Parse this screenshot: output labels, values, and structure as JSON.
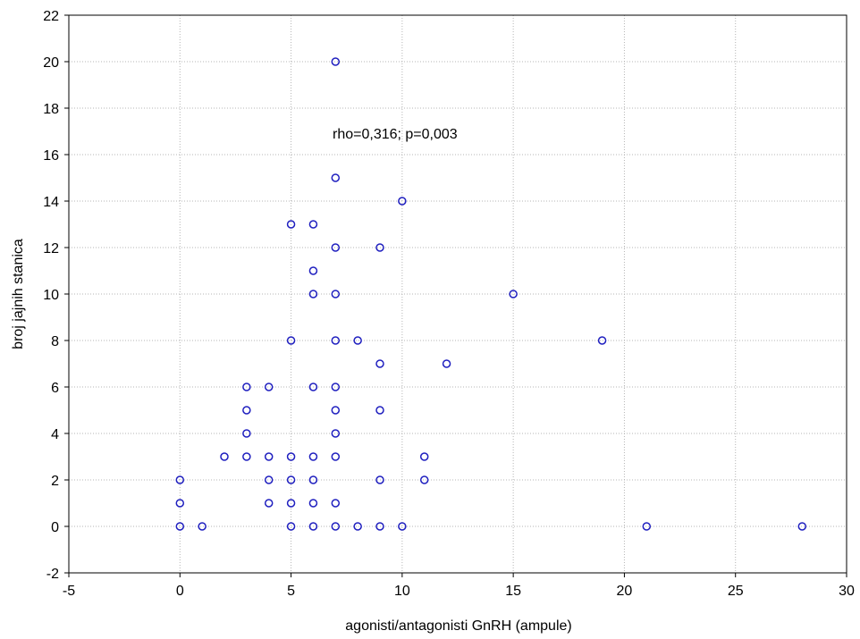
{
  "chart_data": {
    "type": "scatter",
    "xlabel": "agonisti/antagonisti GnRH (ampule)",
    "ylabel": "broj jajnih stanica",
    "xlim": [
      -5,
      30
    ],
    "ylim": [
      -2,
      22
    ],
    "x_ticks": [
      -5,
      0,
      5,
      10,
      15,
      20,
      25,
      30
    ],
    "y_ticks": [
      -2,
      0,
      2,
      4,
      6,
      8,
      10,
      12,
      14,
      16,
      18,
      20,
      22
    ],
    "grid": true,
    "annotation": "rho=0,316; p=0,003",
    "colors": {
      "marker": "#1f1fbf",
      "grid": "#b5b5b5",
      "axis": "#000000"
    },
    "points": [
      [
        0,
        0
      ],
      [
        0,
        1
      ],
      [
        0,
        2
      ],
      [
        1,
        0
      ],
      [
        2,
        3
      ],
      [
        3,
        3
      ],
      [
        3,
        4
      ],
      [
        3,
        5
      ],
      [
        3,
        6
      ],
      [
        4,
        1
      ],
      [
        4,
        2
      ],
      [
        4,
        3
      ],
      [
        4,
        6
      ],
      [
        5,
        0
      ],
      [
        5,
        1
      ],
      [
        5,
        2
      ],
      [
        5,
        3
      ],
      [
        5,
        8
      ],
      [
        5,
        13
      ],
      [
        6,
        0
      ],
      [
        6,
        1
      ],
      [
        6,
        2
      ],
      [
        6,
        3
      ],
      [
        6,
        6
      ],
      [
        6,
        10
      ],
      [
        6,
        11
      ],
      [
        6,
        13
      ],
      [
        7,
        0
      ],
      [
        7,
        1
      ],
      [
        7,
        3
      ],
      [
        7,
        4
      ],
      [
        7,
        5
      ],
      [
        7,
        6
      ],
      [
        7,
        8
      ],
      [
        7,
        10
      ],
      [
        7,
        12
      ],
      [
        7,
        15
      ],
      [
        7,
        20
      ],
      [
        8,
        0
      ],
      [
        8,
        8
      ],
      [
        9,
        0
      ],
      [
        9,
        2
      ],
      [
        9,
        5
      ],
      [
        9,
        7
      ],
      [
        9,
        12
      ],
      [
        10,
        0
      ],
      [
        10,
        14
      ],
      [
        11,
        2
      ],
      [
        11,
        3
      ],
      [
        12,
        7
      ],
      [
        15,
        10
      ],
      [
        19,
        8
      ],
      [
        21,
        0
      ],
      [
        28,
        0
      ]
    ]
  }
}
